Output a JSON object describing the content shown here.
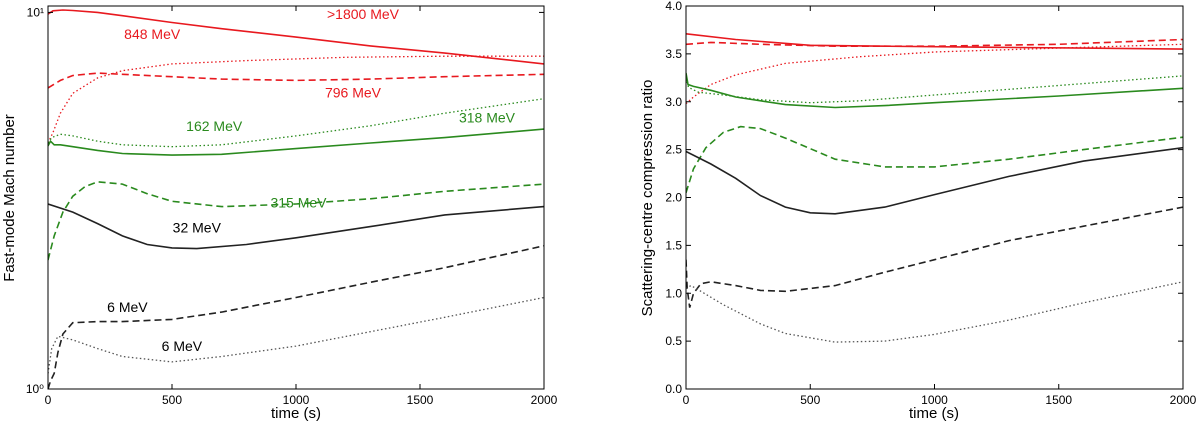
{
  "chart_data": [
    {
      "type": "line",
      "yscale": "log",
      "xlabel": "time (s)",
      "ylabel": "Fast-mode Mach number",
      "xlim": [
        0,
        2000
      ],
      "ylim": [
        1,
        10.4
      ],
      "xticks": [
        0,
        500,
        1000,
        1500,
        2000
      ],
      "xtick_labels": [
        "0",
        "500",
        "1000",
        "1500",
        "2000"
      ],
      "yticks": [
        1,
        10
      ],
      "ytick_labels": [
        "10⁰",
        "10¹"
      ],
      "series": [
        {
          "name": ">1800 MeV",
          "color": "#e8191f",
          "style": "solid",
          "points": [
            [
              0,
              9.9
            ],
            [
              20,
              10.1
            ],
            [
              60,
              10.15
            ],
            [
              100,
              10.12
            ],
            [
              200,
              10.0
            ],
            [
              300,
              9.8
            ],
            [
              500,
              9.4
            ],
            [
              700,
              9.05
            ],
            [
              1000,
              8.6
            ],
            [
              1300,
              8.15
            ],
            [
              1600,
              7.8
            ],
            [
              2000,
              7.3
            ]
          ]
        },
        {
          "name": "848 MeV",
          "color": "#e8191f",
          "style": "dotted",
          "points": [
            [
              0,
              4.5
            ],
            [
              20,
              4.8
            ],
            [
              50,
              5.4
            ],
            [
              100,
              6.1
            ],
            [
              200,
              6.7
            ],
            [
              300,
              7.0
            ],
            [
              500,
              7.3
            ],
            [
              800,
              7.45
            ],
            [
              1200,
              7.6
            ],
            [
              1600,
              7.65
            ],
            [
              2000,
              7.65
            ]
          ]
        },
        {
          "name": "796 MeV",
          "color": "#e8191f",
          "style": "dashed",
          "points": [
            [
              0,
              6.3
            ],
            [
              50,
              6.6
            ],
            [
              100,
              6.8
            ],
            [
              200,
              6.9
            ],
            [
              300,
              6.85
            ],
            [
              500,
              6.75
            ],
            [
              700,
              6.65
            ],
            [
              1000,
              6.6
            ],
            [
              1300,
              6.65
            ],
            [
              1600,
              6.75
            ],
            [
              2000,
              6.85
            ]
          ]
        },
        {
          "name": "162 MeV",
          "color": "#2a8a1e",
          "style": "dotted",
          "points": [
            [
              0,
              4.5
            ],
            [
              15,
              4.65
            ],
            [
              50,
              4.75
            ],
            [
              100,
              4.7
            ],
            [
              200,
              4.55
            ],
            [
              300,
              4.45
            ],
            [
              500,
              4.4
            ],
            [
              700,
              4.45
            ],
            [
              1000,
              4.7
            ],
            [
              1300,
              5.0
            ],
            [
              1600,
              5.4
            ],
            [
              2000,
              5.9
            ]
          ]
        },
        {
          "name": "318 MeV",
          "color": "#2a8a1e",
          "style": "solid",
          "points": [
            [
              0,
              4.42
            ],
            [
              10,
              4.55
            ],
            [
              25,
              4.45
            ],
            [
              50,
              4.45
            ],
            [
              100,
              4.4
            ],
            [
              200,
              4.3
            ],
            [
              300,
              4.22
            ],
            [
              500,
              4.18
            ],
            [
              700,
              4.2
            ],
            [
              1000,
              4.35
            ],
            [
              1300,
              4.5
            ],
            [
              1600,
              4.65
            ],
            [
              2000,
              4.9
            ]
          ]
        },
        {
          "name": "315 MeV",
          "color": "#2a8a1e",
          "style": "dashed",
          "points": [
            [
              0,
              2.2
            ],
            [
              25,
              2.55
            ],
            [
              60,
              2.95
            ],
            [
              100,
              3.25
            ],
            [
              150,
              3.45
            ],
            [
              200,
              3.55
            ],
            [
              300,
              3.5
            ],
            [
              400,
              3.3
            ],
            [
              500,
              3.15
            ],
            [
              700,
              3.05
            ],
            [
              1000,
              3.1
            ],
            [
              1300,
              3.2
            ],
            [
              1600,
              3.35
            ],
            [
              2000,
              3.5
            ]
          ]
        },
        {
          "name": "32 MeV",
          "color": "#222222",
          "style": "solid",
          "points": [
            [
              0,
              3.1
            ],
            [
              100,
              2.95
            ],
            [
              200,
              2.75
            ],
            [
              300,
              2.55
            ],
            [
              400,
              2.42
            ],
            [
              500,
              2.37
            ],
            [
              600,
              2.36
            ],
            [
              800,
              2.42
            ],
            [
              1000,
              2.52
            ],
            [
              1300,
              2.7
            ],
            [
              1600,
              2.9
            ],
            [
              2000,
              3.05
            ]
          ]
        },
        {
          "name": "6 MeV",
          "color": "#222222",
          "style": "dashed",
          "points": [
            [
              0,
              1.0
            ],
            [
              10,
              1.05
            ],
            [
              25,
              1.1
            ],
            [
              40,
              1.25
            ],
            [
              60,
              1.4
            ],
            [
              100,
              1.5
            ],
            [
              200,
              1.51
            ],
            [
              300,
              1.51
            ],
            [
              500,
              1.53
            ],
            [
              700,
              1.6
            ],
            [
              1000,
              1.75
            ],
            [
              1300,
              1.92
            ],
            [
              1600,
              2.1
            ],
            [
              2000,
              2.4
            ]
          ]
        },
        {
          "name": "6 MeV",
          "color": "#555555",
          "style": "dotted",
          "points": [
            [
              0,
              1.1
            ],
            [
              15,
              1.28
            ],
            [
              40,
              1.38
            ],
            [
              100,
              1.35
            ],
            [
              200,
              1.28
            ],
            [
              300,
              1.22
            ],
            [
              500,
              1.18
            ],
            [
              700,
              1.22
            ],
            [
              1000,
              1.3
            ],
            [
              1300,
              1.42
            ],
            [
              1600,
              1.55
            ],
            [
              2000,
              1.75
            ]
          ]
        }
      ],
      "annotations": [
        {
          "text": ">1800 MeV",
          "color": "#e8191f",
          "x": 1270,
          "y": 9.6
        },
        {
          "text": "848 MeV",
          "color": "#e8191f",
          "x": 420,
          "y": 8.5
        },
        {
          "text": "796 MeV",
          "color": "#e8191f",
          "x": 1230,
          "y": 5.95
        },
        {
          "text": "162 MeV",
          "color": "#2a8a1e",
          "x": 670,
          "y": 4.85
        },
        {
          "text": "318 MeV",
          "color": "#2a8a1e",
          "x": 1770,
          "y": 5.1
        },
        {
          "text": "315 MeV",
          "color": "#2a8a1e",
          "x": 1010,
          "y": 3.03
        },
        {
          "text": "32 MeV",
          "color": "#000000",
          "x": 600,
          "y": 2.6
        },
        {
          "text": "6 MeV",
          "color": "#000000",
          "x": 320,
          "y": 1.6
        },
        {
          "text": "6 MeV",
          "color": "#000000",
          "x": 540,
          "y": 1.26
        }
      ]
    },
    {
      "type": "line",
      "yscale": "linear",
      "xlabel": "time (s)",
      "ylabel": "Scattering-centre compression ratio",
      "xlim": [
        0,
        2000
      ],
      "ylim": [
        0.0,
        4.0
      ],
      "xticks": [
        0,
        500,
        1000,
        1500,
        2000
      ],
      "xtick_labels": [
        "0",
        "500",
        "1000",
        "1500",
        "2000"
      ],
      "yticks": [
        0.0,
        0.5,
        1.0,
        1.5,
        2.0,
        2.5,
        3.0,
        3.5,
        4.0
      ],
      "ytick_labels": [
        "0.0",
        "0.5",
        "1.0",
        "1.5",
        "2.0",
        "2.5",
        "3.0",
        "3.5",
        "4.0"
      ],
      "series": [
        {
          "name": "red solid",
          "color": "#e8191f",
          "style": "solid",
          "points": [
            [
              0,
              3.71
            ],
            [
              200,
              3.65
            ],
            [
              500,
              3.59
            ],
            [
              800,
              3.58
            ],
            [
              1200,
              3.57
            ],
            [
              1600,
              3.56
            ],
            [
              2000,
              3.55
            ]
          ]
        },
        {
          "name": "red dashed",
          "color": "#e8191f",
          "style": "dashed",
          "points": [
            [
              0,
              3.6
            ],
            [
              100,
              3.62
            ],
            [
              300,
              3.6
            ],
            [
              600,
              3.58
            ],
            [
              1000,
              3.58
            ],
            [
              1500,
              3.6
            ],
            [
              2000,
              3.65
            ]
          ]
        },
        {
          "name": "red dotted",
          "color": "#e8191f",
          "style": "dotted",
          "points": [
            [
              0,
              2.98
            ],
            [
              30,
              3.05
            ],
            [
              100,
              3.18
            ],
            [
              200,
              3.28
            ],
            [
              400,
              3.4
            ],
            [
              700,
              3.47
            ],
            [
              1000,
              3.52
            ],
            [
              1500,
              3.56
            ],
            [
              2000,
              3.6
            ]
          ]
        },
        {
          "name": "green dotted",
          "color": "#2a8a1e",
          "style": "dotted",
          "points": [
            [
              0,
              3.25
            ],
            [
              10,
              3.15
            ],
            [
              50,
              3.1
            ],
            [
              150,
              3.07
            ],
            [
              300,
              3.02
            ],
            [
              500,
              2.99
            ],
            [
              700,
              3.01
            ],
            [
              1000,
              3.07
            ],
            [
              1500,
              3.17
            ],
            [
              2000,
              3.27
            ]
          ]
        },
        {
          "name": "green solid",
          "color": "#2a8a1e",
          "style": "solid",
          "points": [
            [
              0,
              3.3
            ],
            [
              8,
              3.18
            ],
            [
              30,
              3.16
            ],
            [
              100,
              3.12
            ],
            [
              200,
              3.05
            ],
            [
              400,
              2.97
            ],
            [
              600,
              2.94
            ],
            [
              800,
              2.96
            ],
            [
              1000,
              2.99
            ],
            [
              1500,
              3.06
            ],
            [
              2000,
              3.14
            ]
          ]
        },
        {
          "name": "green dashed",
          "color": "#2a8a1e",
          "style": "dashed",
          "points": [
            [
              0,
              2.05
            ],
            [
              30,
              2.3
            ],
            [
              80,
              2.52
            ],
            [
              150,
              2.68
            ],
            [
              220,
              2.74
            ],
            [
              300,
              2.72
            ],
            [
              400,
              2.62
            ],
            [
              600,
              2.4
            ],
            [
              800,
              2.32
            ],
            [
              1000,
              2.32
            ],
            [
              1300,
              2.4
            ],
            [
              1600,
              2.5
            ],
            [
              2000,
              2.63
            ]
          ]
        },
        {
          "name": "black solid",
          "color": "#222222",
          "style": "solid",
          "points": [
            [
              0,
              2.48
            ],
            [
              100,
              2.35
            ],
            [
              200,
              2.2
            ],
            [
              300,
              2.02
            ],
            [
              400,
              1.9
            ],
            [
              500,
              1.84
            ],
            [
              600,
              1.83
            ],
            [
              800,
              1.9
            ],
            [
              1000,
              2.03
            ],
            [
              1300,
              2.22
            ],
            [
              1600,
              2.38
            ],
            [
              2000,
              2.52
            ]
          ]
        },
        {
          "name": "black dashed",
          "color": "#222222",
          "style": "dashed",
          "points": [
            [
              0,
              1.35
            ],
            [
              5,
              1.05
            ],
            [
              15,
              0.85
            ],
            [
              30,
              1.0
            ],
            [
              60,
              1.1
            ],
            [
              100,
              1.12
            ],
            [
              200,
              1.08
            ],
            [
              300,
              1.03
            ],
            [
              400,
              1.02
            ],
            [
              600,
              1.08
            ],
            [
              800,
              1.22
            ],
            [
              1000,
              1.35
            ],
            [
              1300,
              1.55
            ],
            [
              1600,
              1.7
            ],
            [
              2000,
              1.9
            ]
          ]
        },
        {
          "name": "black dotted",
          "color": "#555555",
          "style": "dotted",
          "points": [
            [
              0,
              1.05
            ],
            [
              20,
              1.08
            ],
            [
              60,
              1.02
            ],
            [
              150,
              0.88
            ],
            [
              300,
              0.68
            ],
            [
              400,
              0.58
            ],
            [
              600,
              0.49
            ],
            [
              800,
              0.5
            ],
            [
              1000,
              0.57
            ],
            [
              1300,
              0.72
            ],
            [
              1600,
              0.9
            ],
            [
              2000,
              1.12
            ]
          ]
        }
      ],
      "annotations": []
    }
  ]
}
